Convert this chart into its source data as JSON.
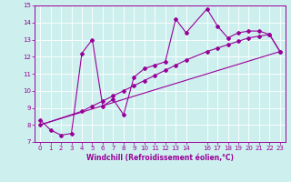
{
  "xlabel": "Windchill (Refroidissement éolien,°C)",
  "xlim": [
    -0.5,
    23.5
  ],
  "ylim": [
    7,
    15
  ],
  "xticks": [
    0,
    1,
    2,
    3,
    4,
    5,
    6,
    7,
    8,
    9,
    10,
    11,
    12,
    13,
    14,
    16,
    17,
    18,
    19,
    20,
    21,
    22,
    23
  ],
  "yticks": [
    7,
    8,
    9,
    10,
    11,
    12,
    13,
    14,
    15
  ],
  "bg_color": "#cdf0ee",
  "line_color": "#990099",
  "series1_x": [
    0,
    1,
    2,
    3,
    4,
    5,
    6,
    7,
    8,
    9,
    10,
    11,
    12,
    13,
    14,
    16,
    17,
    18,
    19,
    20,
    21,
    22,
    23
  ],
  "series1_y": [
    8.3,
    7.7,
    7.4,
    7.5,
    12.2,
    13.0,
    9.1,
    9.5,
    8.6,
    10.8,
    11.3,
    11.5,
    11.7,
    14.2,
    13.4,
    14.8,
    13.8,
    13.1,
    13.4,
    13.5,
    13.5,
    13.3,
    12.3
  ],
  "series2_x": [
    0,
    4,
    5,
    6,
    7,
    8,
    9,
    10,
    11,
    12,
    13,
    14,
    16,
    17,
    18,
    19,
    20,
    21,
    22,
    23
  ],
  "series2_y": [
    8.0,
    8.8,
    9.1,
    9.4,
    9.7,
    10.0,
    10.3,
    10.6,
    10.9,
    11.2,
    11.5,
    11.8,
    12.3,
    12.5,
    12.7,
    12.9,
    13.1,
    13.2,
    13.3,
    12.3
  ],
  "series3_x": [
    0,
    23
  ],
  "series3_y": [
    8.0,
    12.3
  ],
  "marker": "D",
  "markersize": 2,
  "linewidth": 0.8,
  "tick_fontsize": 5.0,
  "xlabel_fontsize": 5.5
}
